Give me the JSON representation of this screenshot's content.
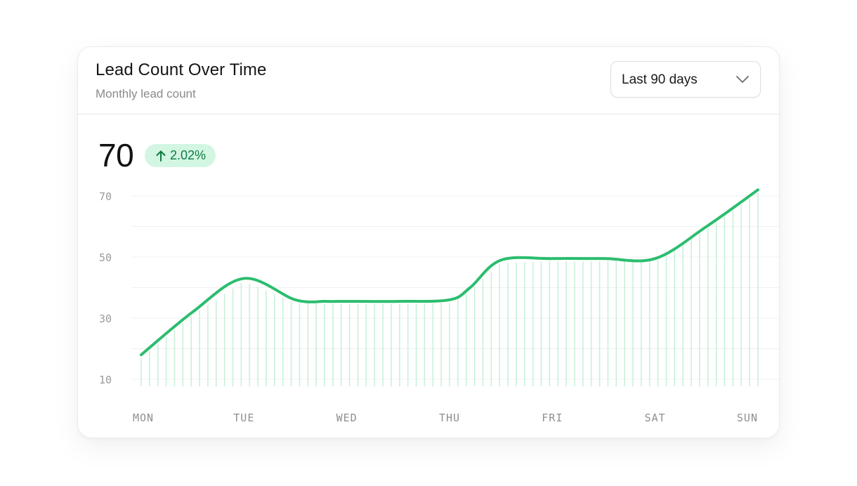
{
  "header": {
    "title": "Lead Count Over Time",
    "subtitle": "Monthly lead count"
  },
  "range_select": {
    "label": "Last 90 days",
    "icon": "chevron-down-icon"
  },
  "summary": {
    "value": "70",
    "change": "2.02%",
    "change_icon": "arrow-up-icon"
  },
  "colors": {
    "line": "#2bbd6e",
    "stems": "#c9f0da",
    "badge_bg": "#d3f6e3",
    "badge_text": "#0f7a42"
  },
  "chart_data": {
    "type": "line",
    "categories": [
      "MON",
      "TUE",
      "WED",
      "THU",
      "FRI",
      "SAT",
      "SUN"
    ],
    "x": [
      0,
      0.5,
      1,
      1.5,
      1.8,
      2,
      2.5,
      3,
      3.2,
      3.5,
      4,
      4.5,
      5,
      5.5,
      6
    ],
    "values": [
      18,
      32,
      43,
      36,
      35.5,
      35.5,
      35.5,
      36,
      40,
      49,
      49.5,
      49.5,
      49.5,
      60,
      72
    ],
    "yticks": [
      10,
      30,
      50,
      70
    ],
    "ylim": [
      10,
      70
    ],
    "grid": true,
    "stems": true
  }
}
